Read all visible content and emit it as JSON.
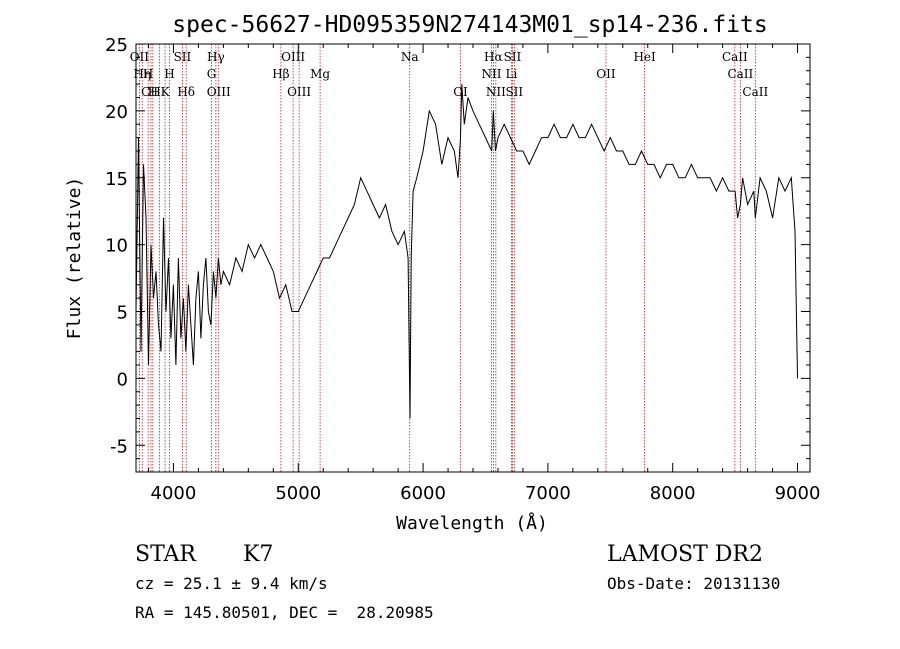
{
  "chart_data": {
    "type": "line",
    "title": "spec-56627-HD095359N274143M01_sp14-236.fits",
    "xlabel": "Wavelength (Å)",
    "ylabel": "Flux (relative)",
    "xlim": [
      3700,
      9100
    ],
    "ylim": [
      -7,
      25
    ],
    "xticks": [
      4000,
      5000,
      6000,
      7000,
      8000,
      9000
    ],
    "yticks": [
      -5,
      0,
      5,
      10,
      15,
      20,
      25
    ],
    "grid": false,
    "legend": "none",
    "line_color": "#000000",
    "marker_line_color": "#b22222",
    "series": [
      {
        "x": [
          3700,
          3720,
          3740,
          3760,
          3780,
          3800,
          3820,
          3840,
          3860,
          3880,
          3900,
          3920,
          3940,
          3960,
          3980,
          4000,
          4020,
          4040,
          4060,
          4080,
          4100,
          4120,
          4140,
          4160,
          4180,
          4200,
          4220,
          4240,
          4260,
          4280,
          4300,
          4320,
          4340,
          4360,
          4380,
          4400,
          4450,
          4500,
          4550,
          4600,
          4650,
          4700,
          4750,
          4800,
          4850,
          4900,
          4950,
          5000,
          5050,
          5100,
          5150,
          5200,
          5250,
          5300,
          5350,
          5400,
          5450,
          5500,
          5550,
          5600,
          5650,
          5700,
          5750,
          5800,
          5850,
          5880,
          5895,
          5905,
          5920,
          5950,
          6000,
          6050,
          6100,
          6150,
          6200,
          6250,
          6280,
          6300,
          6310,
          6330,
          6360,
          6400,
          6450,
          6500,
          6550,
          6563,
          6580,
          6600,
          6650,
          6700,
          6750,
          6800,
          6850,
          6900,
          6950,
          7000,
          7050,
          7100,
          7150,
          7200,
          7250,
          7300,
          7350,
          7400,
          7450,
          7500,
          7550,
          7600,
          7650,
          7700,
          7750,
          7800,
          7850,
          7900,
          7950,
          8000,
          8050,
          8100,
          8150,
          8200,
          8250,
          8300,
          8350,
          8400,
          8450,
          8500,
          8520,
          8542,
          8560,
          8600,
          8650,
          8662,
          8700,
          8750,
          8800,
          8850,
          8900,
          8950,
          8980,
          9000
        ],
        "y": [
          5,
          18,
          2,
          16,
          12,
          1,
          10,
          6,
          8,
          4,
          2,
          12,
          5,
          9,
          3,
          7,
          1,
          9,
          3,
          6,
          2,
          7,
          4,
          1,
          6,
          8,
          3,
          7,
          9,
          5,
          4,
          8,
          6,
          9,
          7,
          8,
          7,
          9,
          8,
          10,
          9,
          10,
          9,
          8,
          6,
          7,
          5,
          5,
          6,
          7,
          8,
          9,
          9,
          10,
          11,
          12,
          13,
          15,
          14,
          13,
          12,
          13,
          11,
          10,
          11,
          9,
          -3,
          9,
          14,
          15,
          17,
          20,
          19,
          16,
          18,
          17,
          15,
          18,
          22,
          19,
          21,
          20,
          19,
          18,
          17,
          20,
          17,
          18,
          19,
          18,
          17,
          17,
          16,
          17,
          18,
          18,
          19,
          18,
          18,
          19,
          18,
          18,
          19,
          18,
          17,
          18,
          17,
          17,
          16,
          16,
          17,
          16,
          16,
          15,
          16,
          16,
          15,
          15,
          16,
          15,
          15,
          15,
          14,
          15,
          14,
          14,
          12,
          13,
          15,
          13,
          14,
          12,
          15,
          14,
          12,
          15,
          14,
          15,
          11,
          0
        ]
      }
    ],
    "line_markers": [
      {
        "w": 3727,
        "label": "OII",
        "row": 0
      },
      {
        "w": 3750,
        "label": "Hη",
        "row": 1
      },
      {
        "w": 3797,
        "label": "H",
        "row": 1
      },
      {
        "w": 3820,
        "label": "CH",
        "row": 2
      },
      {
        "w": 3835,
        "label": "H",
        "row": 2
      },
      {
        "w": 3889,
        "label": "",
        "row": 2
      },
      {
        "w": 3933,
        "label": "K",
        "row": 2
      },
      {
        "w": 3968,
        "label": "H",
        "row": 1
      },
      {
        "w": 4072,
        "label": "SII",
        "row": 0
      },
      {
        "w": 4102,
        "label": "Hδ",
        "row": 2
      },
      {
        "w": 4305,
        "label": "G",
        "row": 1
      },
      {
        "w": 4340,
        "label": "Hγ",
        "row": 0
      },
      {
        "w": 4363,
        "label": "OIII",
        "row": 2
      },
      {
        "w": 4861,
        "label": "Hβ",
        "row": 1
      },
      {
        "w": 4959,
        "label": "OIII",
        "row": 0
      },
      {
        "w": 5007,
        "label": "OIII",
        "row": 2
      },
      {
        "w": 5175,
        "label": "Mg",
        "row": 1
      },
      {
        "w": 5893,
        "label": "Na",
        "row": 0
      },
      {
        "w": 6300,
        "label": "OI",
        "row": 2
      },
      {
        "w": 6548,
        "label": "NII",
        "row": 1
      },
      {
        "w": 6563,
        "label": "Hα",
        "row": 0
      },
      {
        "w": 6583,
        "label": "NII",
        "row": 2
      },
      {
        "w": 6708,
        "label": "Li",
        "row": 1
      },
      {
        "w": 6716,
        "label": "SII",
        "row": 0
      },
      {
        "w": 6731,
        "label": "SII",
        "row": 2
      },
      {
        "w": 7465,
        "label": "OII",
        "row": 1
      },
      {
        "w": 7775,
        "label": "HeI",
        "row": 0
      },
      {
        "w": 8498,
        "label": "CaII",
        "row": 0
      },
      {
        "w": 8542,
        "label": "CaII",
        "row": 1
      },
      {
        "w": 8662,
        "label": "CaII",
        "row": 2
      }
    ]
  },
  "info": {
    "class_label": "STAR",
    "subclass_label": "K7",
    "survey": "LAMOST DR2",
    "cz": "cz = 25.1 ± 9.4 km/s",
    "obs_date": "Obs-Date: 20131130",
    "radec": "RA = 145.80501, DEC =  28.20985"
  }
}
